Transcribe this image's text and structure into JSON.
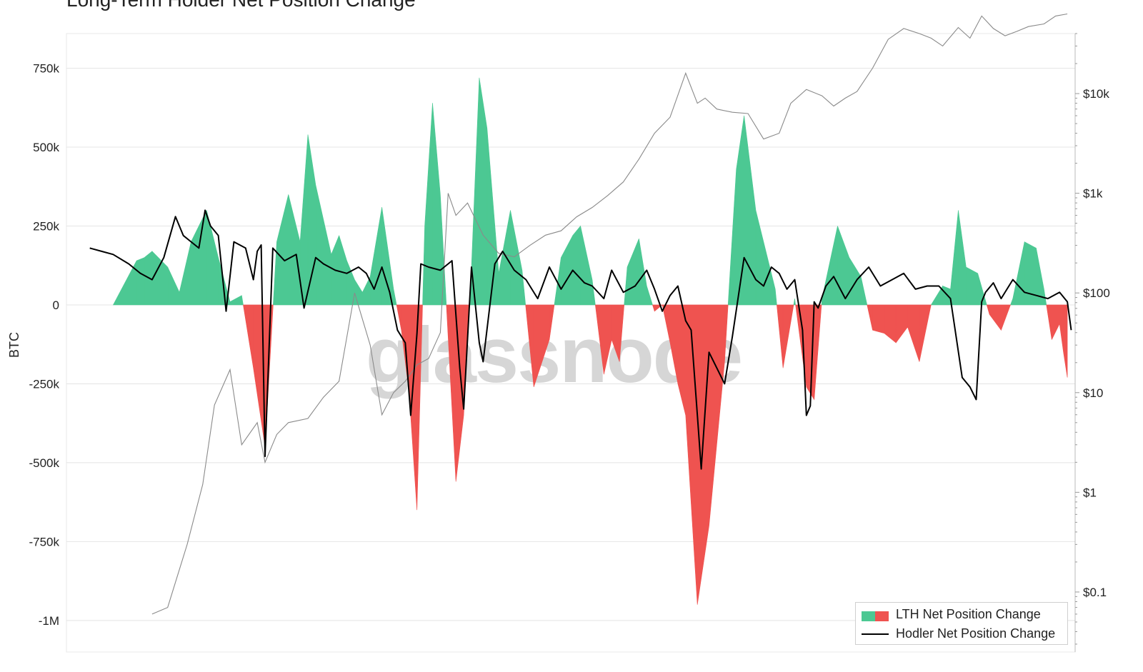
{
  "title": "Long-Term Holder Net Position Change",
  "watermark": "glassnode",
  "colors": {
    "positive": "#4cc893",
    "negative": "#ef5350",
    "hodler_line": "#000000",
    "price_line": "#8a8a8a",
    "grid": "#e4e4e4"
  },
  "chart_data": {
    "type": "area",
    "title": "Long-Term Holder Net Position Change",
    "ylabel": "BTC",
    "ylim": [
      -1100000,
      860000
    ],
    "y_ticks": [
      -1000000,
      -750000,
      -500000,
      -250000,
      0,
      250000,
      500000,
      750000
    ],
    "y_tick_labels": [
      "-1M",
      "-750k",
      "-500k",
      "-250k",
      "0",
      "250k",
      "500k",
      "750k"
    ],
    "y2_scale": "log",
    "y2lim": [
      0.025,
      40000
    ],
    "y2_ticks": [
      0.1,
      1,
      10,
      100,
      1000,
      10000
    ],
    "y2_tick_labels": [
      "$0.1",
      "$1",
      "$10",
      "$100",
      "$1k",
      "$10k"
    ],
    "xlim": [
      2010.0,
      2022.95
    ],
    "grid": true,
    "legend_position": "bottom-right",
    "legend": [
      "LTH Net Position Change",
      "Hodler Net Position Change"
    ],
    "series": [
      {
        "name": "LTH Net Position Change",
        "kind": "area",
        "x": [
          2010.6,
          2010.9,
          2011.0,
          2011.1,
          2011.3,
          2011.45,
          2011.6,
          2011.8,
          2011.95,
          2012.1,
          2012.25,
          2012.4,
          2012.55,
          2012.7,
          2012.85,
          2013.0,
          2013.1,
          2013.2,
          2013.4,
          2013.5,
          2013.6,
          2013.7,
          2013.8,
          2013.9,
          2014.05,
          2014.2,
          2014.3,
          2014.4,
          2014.5,
          2014.6,
          2014.7,
          2014.8,
          2014.9,
          2015.0,
          2015.1,
          2015.2,
          2015.3,
          2015.4,
          2015.55,
          2015.7,
          2015.85,
          2016.0,
          2016.2,
          2016.35,
          2016.5,
          2016.6,
          2016.75,
          2016.9,
          2017.0,
          2017.1,
          2017.2,
          2017.35,
          2017.45,
          2017.55,
          2017.65,
          2017.75,
          2017.85,
          2017.95,
          2018.1,
          2018.25,
          2018.45,
          2018.6,
          2018.7,
          2018.85,
          2019.0,
          2019.1,
          2019.2,
          2019.35,
          2019.5,
          2019.6,
          2019.7,
          2019.9,
          2020.05,
          2020.2,
          2020.35,
          2020.5,
          2020.65,
          2020.8,
          2020.95,
          2021.1,
          2021.25,
          2021.35,
          2021.45,
          2021.55,
          2021.7,
          2021.85,
          2022.0,
          2022.15,
          2022.3,
          2022.45,
          2022.55,
          2022.65,
          2022.75,
          2022.8,
          2022.85
        ],
        "y": [
          0,
          140000,
          150000,
          170000,
          120000,
          40000,
          200000,
          300000,
          150000,
          10000,
          30000,
          -200000,
          -450000,
          200000,
          350000,
          200000,
          540000,
          380000,
          160000,
          220000,
          140000,
          80000,
          40000,
          90000,
          310000,
          50000,
          -80000,
          -280000,
          -650000,
          250000,
          640000,
          350000,
          -100000,
          -560000,
          -350000,
          120000,
          720000,
          560000,
          100000,
          300000,
          110000,
          -260000,
          -110000,
          150000,
          220000,
          250000,
          80000,
          -220000,
          -110000,
          -180000,
          120000,
          210000,
          60000,
          -20000,
          0,
          -120000,
          -250000,
          -350000,
          -950000,
          -700000,
          -180000,
          430000,
          600000,
          300000,
          150000,
          50000,
          -200000,
          20000,
          -260000,
          -300000,
          20000,
          250000,
          150000,
          90000,
          -80000,
          -90000,
          -120000,
          -70000,
          -180000,
          0,
          60000,
          50000,
          300000,
          120000,
          100000,
          -30000,
          -80000,
          20000,
          200000,
          180000,
          50000,
          -110000,
          -60000,
          -150000,
          -230000
        ]
      },
      {
        "name": "Hodler Net Position Change",
        "kind": "line",
        "x": [
          2010.3,
          2010.45,
          2010.6,
          2010.8,
          2010.95,
          2011.1,
          2011.25,
          2011.4,
          2011.5,
          2011.6,
          2011.7,
          2011.78,
          2011.85,
          2011.95,
          2012.05,
          2012.15,
          2012.3,
          2012.4,
          2012.45,
          2012.5,
          2012.55,
          2012.65,
          2012.8,
          2012.95,
          2013.05,
          2013.2,
          2013.3,
          2013.45,
          2013.6,
          2013.75,
          2013.85,
          2013.95,
          2014.05,
          2014.15,
          2014.25,
          2014.35,
          2014.42,
          2014.5,
          2014.55,
          2014.65,
          2014.8,
          2014.95,
          2015.05,
          2015.1,
          2015.2,
          2015.3,
          2015.35,
          2015.5,
          2015.6,
          2015.75,
          2015.9,
          2016.05,
          2016.2,
          2016.35,
          2016.5,
          2016.65,
          2016.75,
          2016.9,
          2017.0,
          2017.15,
          2017.3,
          2017.45,
          2017.55,
          2017.65,
          2017.75,
          2017.85,
          2017.95,
          2018.02,
          2018.1,
          2018.15,
          2018.25,
          2018.35,
          2018.45,
          2018.55,
          2018.7,
          2018.85,
          2018.95,
          2019.05,
          2019.15,
          2019.25,
          2019.35,
          2019.45,
          2019.5,
          2019.55,
          2019.6,
          2019.65,
          2019.75,
          2019.85,
          2020.0,
          2020.15,
          2020.3,
          2020.45,
          2020.6,
          2020.75,
          2020.9,
          2021.05,
          2021.2,
          2021.35,
          2021.5,
          2021.6,
          2021.68,
          2021.75,
          2021.8,
          2021.9,
          2022.0,
          2022.15,
          2022.3,
          2022.45,
          2022.6,
          2022.75,
          2022.85,
          2022.9
        ],
        "y": [
          180000,
          170000,
          160000,
          130000,
          100000,
          80000,
          150000,
          280000,
          220000,
          200000,
          180000,
          300000,
          250000,
          220000,
          -20000,
          200000,
          180000,
          80000,
          170000,
          190000,
          -480000,
          180000,
          140000,
          160000,
          -10000,
          150000,
          130000,
          110000,
          100000,
          120000,
          100000,
          50000,
          120000,
          40000,
          -80000,
          -120000,
          -350000,
          -90000,
          130000,
          120000,
          110000,
          140000,
          -200000,
          -330000,
          120000,
          -120000,
          -180000,
          130000,
          170000,
          110000,
          80000,
          20000,
          120000,
          50000,
          110000,
          70000,
          60000,
          20000,
          110000,
          40000,
          60000,
          110000,
          50000,
          -20000,
          30000,
          60000,
          -50000,
          -80000,
          -350000,
          -520000,
          -150000,
          -200000,
          -250000,
          -100000,
          150000,
          80000,
          60000,
          120000,
          100000,
          50000,
          80000,
          -80000,
          -350000,
          -320000,
          10000,
          -10000,
          60000,
          90000,
          20000,
          80000,
          120000,
          60000,
          80000,
          100000,
          50000,
          60000,
          60000,
          20000,
          -230000,
          -260000,
          -300000,
          10000,
          40000,
          70000,
          20000,
          80000,
          40000,
          30000,
          20000,
          40000,
          10000,
          -80000
        ]
      },
      {
        "name": "",
        "kind": "price",
        "x": [
          2011.1,
          2011.3,
          2011.55,
          2011.75,
          2011.9,
          2012.1,
          2012.25,
          2012.45,
          2012.55,
          2012.7,
          2012.85,
          2013.1,
          2013.3,
          2013.5,
          2013.7,
          2013.9,
          2014.05,
          2014.2,
          2014.35,
          2014.5,
          2014.65,
          2014.8,
          2014.9,
          2015.0,
          2015.15,
          2015.35,
          2015.55,
          2015.75,
          2015.95,
          2016.15,
          2016.35,
          2016.55,
          2016.75,
          2016.95,
          2017.15,
          2017.35,
          2017.55,
          2017.75,
          2017.95,
          2018.1,
          2018.2,
          2018.35,
          2018.55,
          2018.75,
          2018.95,
          2019.15,
          2019.3,
          2019.5,
          2019.7,
          2019.85,
          2020.0,
          2020.15,
          2020.35,
          2020.55,
          2020.75,
          2020.95,
          2021.1,
          2021.25,
          2021.45,
          2021.6,
          2021.75,
          2021.9,
          2022.05,
          2022.2,
          2022.35,
          2022.55,
          2022.7,
          2022.85
        ],
        "y": [
          0.06,
          0.07,
          0.3,
          1.2,
          7.5,
          17,
          3,
          5,
          2,
          3.8,
          5,
          5.5,
          9,
          13,
          100,
          30,
          6,
          10,
          13,
          19,
          22,
          40,
          1000,
          600,
          800,
          380,
          250,
          230,
          300,
          380,
          420,
          580,
          720,
          950,
          1300,
          2200,
          4000,
          5800,
          16000,
          8000,
          9000,
          7000,
          6500,
          6300,
          3500,
          4000,
          8000,
          11000,
          9500,
          7500,
          9000,
          10500,
          18000,
          35000,
          45000,
          40000,
          36000,
          30000,
          46000,
          36000,
          60000,
          45000,
          38000,
          42000,
          47000,
          50000,
          60000,
          63000
        ]
      }
    ]
  }
}
